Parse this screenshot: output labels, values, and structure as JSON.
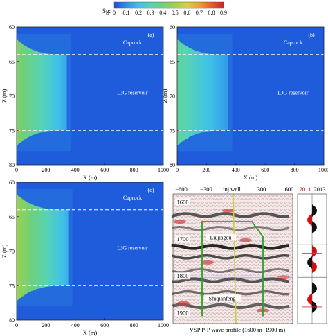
{
  "colorbar": {
    "label": "Sg:",
    "ticks": [
      "0",
      "0.1",
      "0.2",
      "0.3",
      "0.4",
      "0.5",
      "0.6",
      "0.7",
      "0.8",
      "0.9"
    ],
    "colors": [
      "#1b4fd8",
      "#2f8fe6",
      "#3fc1e9",
      "#57d3b4",
      "#6fd07a",
      "#9fd34a",
      "#d8d23a",
      "#f0a12f",
      "#e95a2a",
      "#d71f2a"
    ]
  },
  "chart_data": [
    {
      "type": "heatmap",
      "panel_label": "(a)",
      "xlabel": "X (m)",
      "ylabel": "Z (m)",
      "xlim": [
        0,
        1000
      ],
      "ylim": [
        80,
        60
      ],
      "xticks": [
        "0",
        "200",
        "400",
        "600",
        "800",
        "1000"
      ],
      "yticks": [
        "60",
        "65",
        "70",
        "75",
        "80"
      ],
      "layer_boundaries_z": [
        64,
        75
      ],
      "annotations": [
        "Caprock",
        "LJG reservoir"
      ],
      "plume_front_x": 340,
      "max_sg": 0.4
    },
    {
      "type": "heatmap",
      "panel_label": "(b)",
      "xlabel": "X (m)",
      "ylabel": "Z (m)",
      "xlim": [
        0,
        1000
      ],
      "ylim": [
        80,
        60
      ],
      "xticks": [
        "0",
        "200",
        "400",
        "600",
        "800",
        "1000"
      ],
      "yticks": [
        "60",
        "65",
        "70",
        "75",
        "80"
      ],
      "layer_boundaries_z": [
        64,
        75
      ],
      "annotations": [
        "Caprock",
        "LJG reservoir"
      ],
      "plume_front_x": 345,
      "max_sg": 0.3
    },
    {
      "type": "heatmap",
      "panel_label": "(c)",
      "xlabel": "X (m)",
      "ylabel": "Z (m)",
      "xlim": [
        0,
        1000
      ],
      "ylim": [
        80,
        60
      ],
      "xticks": [
        "0",
        "200",
        "400",
        "600",
        "800",
        "1000"
      ],
      "yticks": [
        "60",
        "65",
        "70",
        "75",
        "80"
      ],
      "layer_boundaries_z": [
        64,
        75
      ],
      "annotations": [
        "Caprock",
        "LJG reservoir"
      ],
      "plume_front_x": 350,
      "max_sg": 0.45
    }
  ],
  "seismic": {
    "xticks": [
      "−600",
      "−300",
      "inj.well",
      "300",
      "600"
    ],
    "yticks": [
      "1600",
      "1700",
      "1800",
      "1900"
    ],
    "labels": [
      "Liujiagou",
      "Shiqianfeng"
    ],
    "caption": "VSP P-P wave profile (1600 m−1900 m)",
    "years": [
      "2011",
      "2013"
    ],
    "year_colors": [
      "#d01010",
      "#111111"
    ]
  }
}
